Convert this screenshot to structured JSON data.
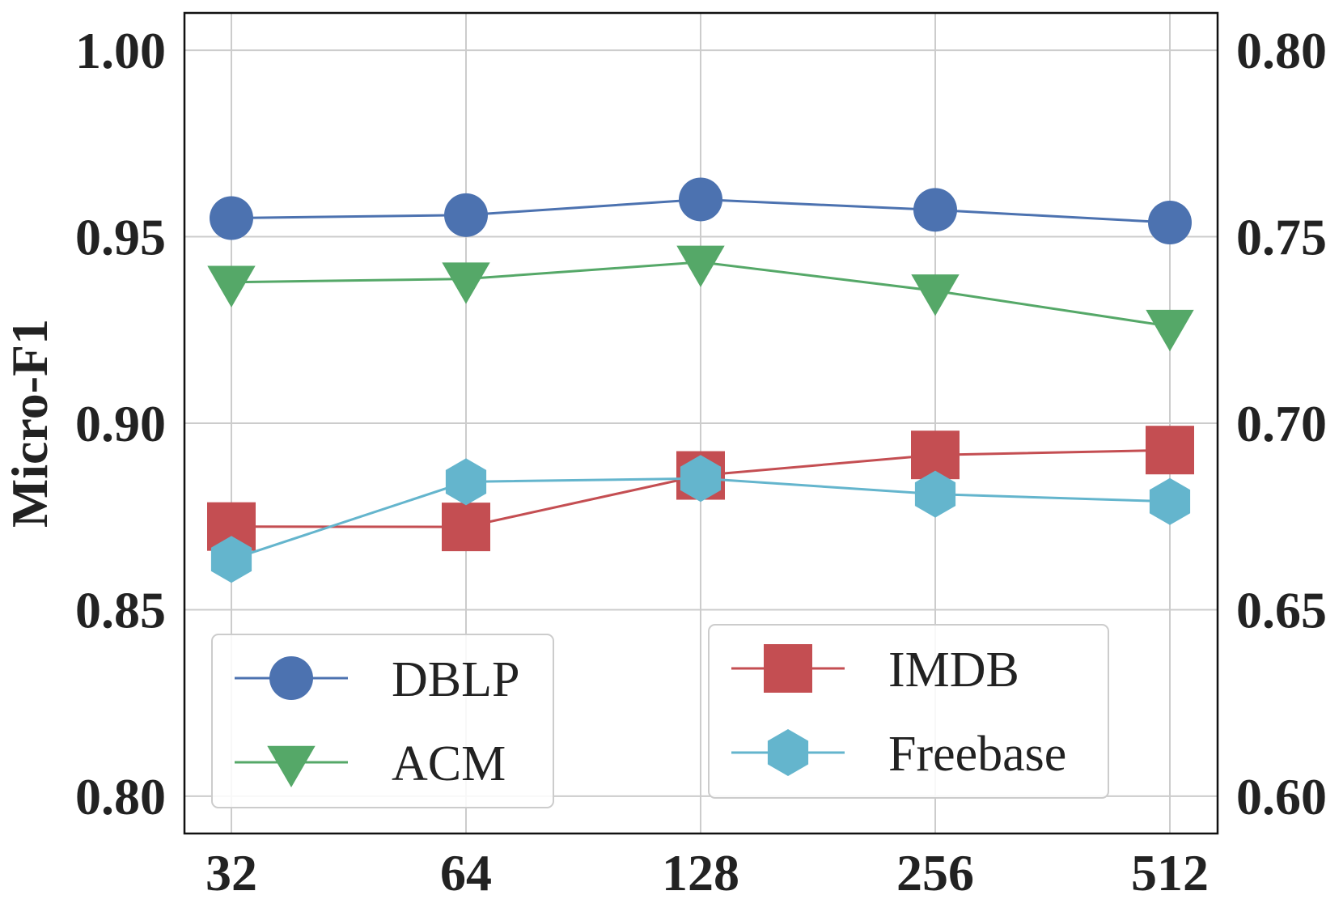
{
  "chart_data": {
    "type": "line",
    "title": "",
    "xlabel": "",
    "ylabel": "Micro-F1",
    "categories": [
      "32",
      "64",
      "128",
      "256",
      "512"
    ],
    "y_left": {
      "ylim": [
        0.79,
        1.01
      ],
      "ticks": [
        0.8,
        0.85,
        0.9,
        0.95,
        1.0
      ],
      "tick_labels": [
        "0.80",
        "0.85",
        "0.90",
        "0.95",
        "1.00"
      ]
    },
    "y_right": {
      "ylim": [
        0.59,
        0.81
      ],
      "ticks": [
        0.6,
        0.65,
        0.7,
        0.75,
        0.8
      ],
      "tick_labels": [
        "0.60",
        "0.65",
        "0.70",
        "0.75",
        "0.80"
      ]
    },
    "grid": true,
    "series": [
      {
        "name": "DBLP",
        "axis": "left",
        "values": [
          0.955,
          0.9558,
          0.96,
          0.9572,
          0.9538
        ],
        "color": "#4c72b0",
        "marker": "circle"
      },
      {
        "name": "ACM",
        "axis": "left",
        "values": [
          0.9378,
          0.9387,
          0.9432,
          0.9355,
          0.926
        ],
        "color": "#55a868",
        "marker": "triangle-down"
      },
      {
        "name": "IMDB",
        "axis": "right",
        "values": [
          0.6723,
          0.6722,
          0.686,
          0.6915,
          0.6928
        ],
        "color": "#c44e52",
        "marker": "square"
      },
      {
        "name": "Freebase",
        "axis": "right",
        "values": [
          0.6635,
          0.6843,
          0.6852,
          0.681,
          0.679
        ],
        "color": "#64b5cd",
        "marker": "hexagon"
      }
    ],
    "legends": [
      {
        "location": "lower-left",
        "entries": [
          "DBLP",
          "ACM"
        ]
      },
      {
        "location": "lower-center",
        "entries": [
          "IMDB",
          "Freebase"
        ]
      }
    ]
  }
}
